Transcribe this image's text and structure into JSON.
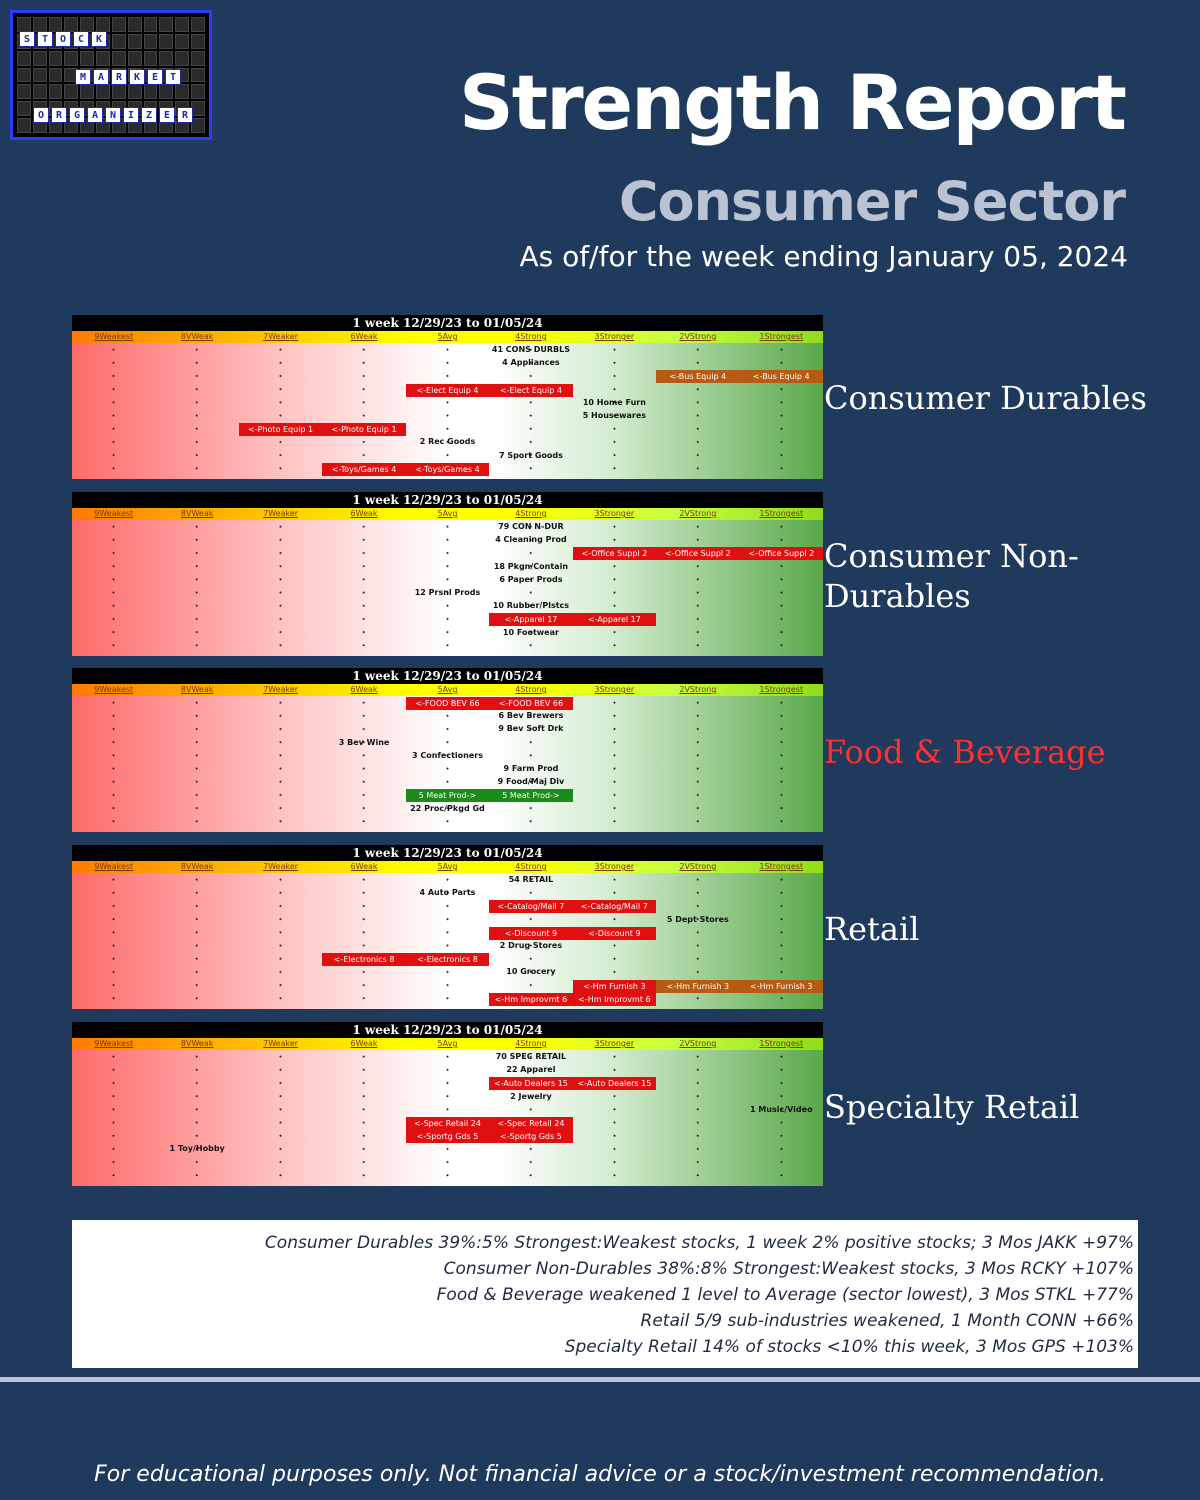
{
  "logo": {
    "words": [
      "STOCK",
      "MARKET",
      "ORGANIZER"
    ]
  },
  "header": {
    "title": "Strength Report",
    "subtitle": "Consumer Sector",
    "as_of": "As of/for the week ending January 05, 2024"
  },
  "columns": [
    "9Weakest",
    "8VWeak",
    "7Weaker",
    "6Weak",
    "5Avg",
    "4Strong",
    "3Stronger",
    "2VStrong",
    "1Strongest"
  ],
  "panels": [
    {
      "heading": "1 week 12/29/23 to 01/05/24",
      "sector": "Consumer Durables",
      "rows": [
        {
          "col": 5,
          "text": "41 CONS DURBLS"
        },
        {
          "col": 5,
          "text": "4 Appliances"
        },
        {
          "tags": [
            {
              "col": 7,
              "text": "<-Bus Equip 4",
              "color": "brown"
            },
            {
              "col": 8,
              "text": "<-Bus Equip 4",
              "color": "brown"
            }
          ]
        },
        {
          "tags": [
            {
              "col": 4,
              "text": "<-Elect Equip 4",
              "color": "red"
            },
            {
              "col": 5,
              "text": "<-Elect Equip 4",
              "color": "red"
            }
          ]
        },
        {
          "col": 6,
          "text": "10 Home Furn"
        },
        {
          "col": 6,
          "text": "5 Housewares"
        },
        {
          "tags": [
            {
              "col": 2,
              "text": "<-Photo Equip 1",
              "color": "red"
            },
            {
              "col": 3,
              "text": "<-Photo Equip 1",
              "color": "red"
            }
          ]
        },
        {
          "col": 4,
          "text": "2 Rec Goods"
        },
        {
          "col": 5,
          "text": "7 Sport Goods"
        },
        {
          "tags": [
            {
              "col": 3,
              "text": "<-Toys/Games 4",
              "color": "red"
            },
            {
              "col": 4,
              "text": "<-Toys/Games 4",
              "color": "red"
            }
          ]
        }
      ]
    },
    {
      "heading": "1 week 12/29/23 to 01/05/24",
      "sector": "Consumer Non-Durables",
      "rows": [
        {
          "col": 5,
          "text": "79 CON N-DUR"
        },
        {
          "col": 5,
          "text": "4 Cleaning Prod"
        },
        {
          "tags": [
            {
              "col": 6,
              "text": "<-Office Suppl 2",
              "color": "red"
            },
            {
              "col": 7,
              "text": "<-Office Suppl 2",
              "color": "red"
            },
            {
              "col": 8,
              "text": "<-Office Suppl 2",
              "color": "red"
            }
          ]
        },
        {
          "col": 5,
          "text": "18 Pkgn/Contain"
        },
        {
          "col": 5,
          "text": "6 Paper Prods"
        },
        {
          "col": 4,
          "text": "12 Prsnl Prods"
        },
        {
          "col": 5,
          "text": "10 Rubber/Plstcs"
        },
        {
          "tags": [
            {
              "col": 5,
              "text": "<-Apparel 17",
              "color": "red"
            },
            {
              "col": 6,
              "text": "<-Apparel 17",
              "color": "red"
            }
          ]
        },
        {
          "col": 5,
          "text": "10 Footwear"
        }
      ]
    },
    {
      "heading": "1 week 12/29/23 to 01/05/24",
      "sector": "Food & Beverage",
      "rows": [
        {
          "tags": [
            {
              "col": 4,
              "text": "<-FOOD BEV 66",
              "color": "red"
            },
            {
              "col": 5,
              "text": "<-FOOD BEV 66",
              "color": "red"
            }
          ]
        },
        {
          "col": 5,
          "text": "6 Bev Brewers"
        },
        {
          "col": 5,
          "text": "9 Bev Soft Drk"
        },
        {
          "col": 3,
          "text": "3 Bev Wine"
        },
        {
          "col": 4,
          "text": "3 Confectioners"
        },
        {
          "col": 5,
          "text": "9 Farm Prod"
        },
        {
          "col": 5,
          "text": "9 Food/Maj Div"
        },
        {
          "tags": [
            {
              "col": 4,
              "text": "5 Meat Prod->",
              "color": "green"
            },
            {
              "col": 5,
              "text": "5 Meat Prod->",
              "color": "green"
            }
          ]
        },
        {
          "col": 4,
          "text": "22 Proc/Pkgd Gd"
        }
      ]
    },
    {
      "heading": "1 week 12/29/23 to 01/05/24",
      "sector": "Retail",
      "rows": [
        {
          "col": 5,
          "text": "54 RETAIL"
        },
        {
          "col": 4,
          "text": "4 Auto Parts"
        },
        {
          "tags": [
            {
              "col": 5,
              "text": "<-Catalog/Mail 7",
              "color": "red"
            },
            {
              "col": 6,
              "text": "<-Catalog/Mail 7",
              "color": "red"
            }
          ]
        },
        {
          "col": 7,
          "text": "5 Dept Stores"
        },
        {
          "tags": [
            {
              "col": 5,
              "text": "<-Discount 9",
              "color": "red"
            },
            {
              "col": 6,
              "text": "<-Discount 9",
              "color": "red"
            }
          ]
        },
        {
          "col": 5,
          "text": "2 Drug Stores"
        },
        {
          "tags": [
            {
              "col": 3,
              "text": "<-Electronics 8",
              "color": "red"
            },
            {
              "col": 4,
              "text": "<-Electronics 8",
              "color": "red"
            }
          ]
        },
        {
          "col": 5,
          "text": "10 Grocery"
        },
        {
          "tags": [
            {
              "col": 6,
              "text": "<-Hm Furnish 3",
              "color": "red"
            },
            {
              "col": 7,
              "text": "<-Hm Furnish 3",
              "color": "brown"
            },
            {
              "col": 8,
              "text": "<-Hm Furnish 3",
              "color": "brown"
            }
          ]
        },
        {
          "tags": [
            {
              "col": 5,
              "text": "<-Hm Improvmt 6",
              "color": "red"
            },
            {
              "col": 6,
              "text": "<-Hm Improvmt 6",
              "color": "red"
            }
          ]
        }
      ]
    },
    {
      "heading": "1 week 12/29/23 to 01/05/24",
      "sector": "Specialty Retail",
      "rows": [
        {
          "col": 5,
          "text": "70 SPEC RETAIL"
        },
        {
          "col": 5,
          "text": "22 Apparel"
        },
        {
          "tags": [
            {
              "col": 5,
              "text": "<-Auto Dealers 15",
              "color": "red"
            },
            {
              "col": 6,
              "text": "<-Auto Dealers 15",
              "color": "red"
            }
          ]
        },
        {
          "col": 5,
          "text": "2 Jewelry"
        },
        {
          "col": 8,
          "text": "1 Music/Video"
        },
        {
          "tags": [
            {
              "col": 4,
              "text": "<-Spec Retail 24",
              "color": "red"
            },
            {
              "col": 5,
              "text": "<-Spec Retail 24",
              "color": "red"
            }
          ]
        },
        {
          "tags": [
            {
              "col": 4,
              "text": "<-Sportg Gds 5",
              "color": "red"
            },
            {
              "col": 5,
              "text": "<-Sportg Gds 5",
              "color": "red"
            }
          ]
        },
        {
          "col": 1,
          "text": "1 Toy/Hobby"
        }
      ]
    }
  ],
  "notes": [
    "Consumer Durables 39%:5% Strongest:Weakest stocks, 1 week 2% positive stocks; 3 Mos JAKK +97%",
    "Consumer Non-Durables 38%:8% Strongest:Weakest stocks, 3 Mos RCKY +107%",
    "Food & Beverage weakened 1 level to Average (sector lowest), 3 Mos STKL +77%",
    "Retail 5/9 sub-industries weakened, 1 Month CONN +66%",
    "Specialty Retail 14% of stocks <10% this week, 3 Mos GPS +103%"
  ],
  "footer": "For educational purposes only. Not financial advice or a stock/investment recommendation."
}
